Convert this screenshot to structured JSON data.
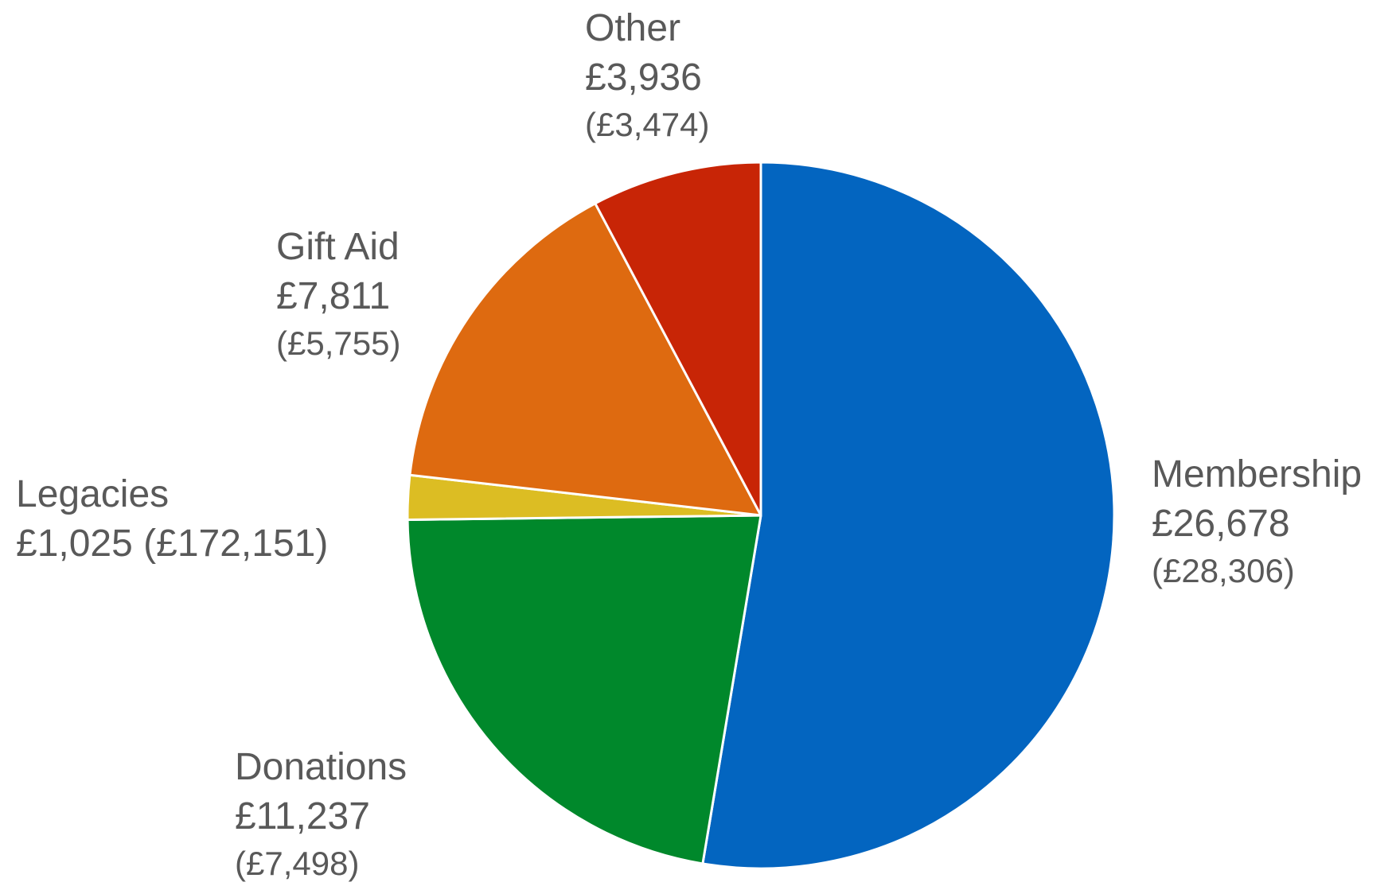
{
  "chart_data": {
    "type": "pie",
    "title": "",
    "start": "12 o'clock",
    "direction": "clockwise",
    "slices": [
      {
        "name": "Membership",
        "value": 26678,
        "value_label": "£26,678",
        "prior_label": "(£28,306)",
        "color": "#0365C0"
      },
      {
        "name": "Donations",
        "value": 11237,
        "value_label": "£11,237",
        "prior_label": "(£7,498)",
        "color": "#00882B"
      },
      {
        "name": "Legacies",
        "value": 1025,
        "value_label": "£1,025",
        "prior_label": "(£172,151)",
        "color": "#DCBD23"
      },
      {
        "name": "Gift Aid",
        "value": 7811,
        "value_label": "£7,811",
        "prior_label": "(£5,755)",
        "color": "#DE6A10"
      },
      {
        "name": "Other",
        "value": 3936,
        "value_label": "£3,936",
        "prior_label": "(£3,474)",
        "color": "#C82506"
      }
    ]
  }
}
